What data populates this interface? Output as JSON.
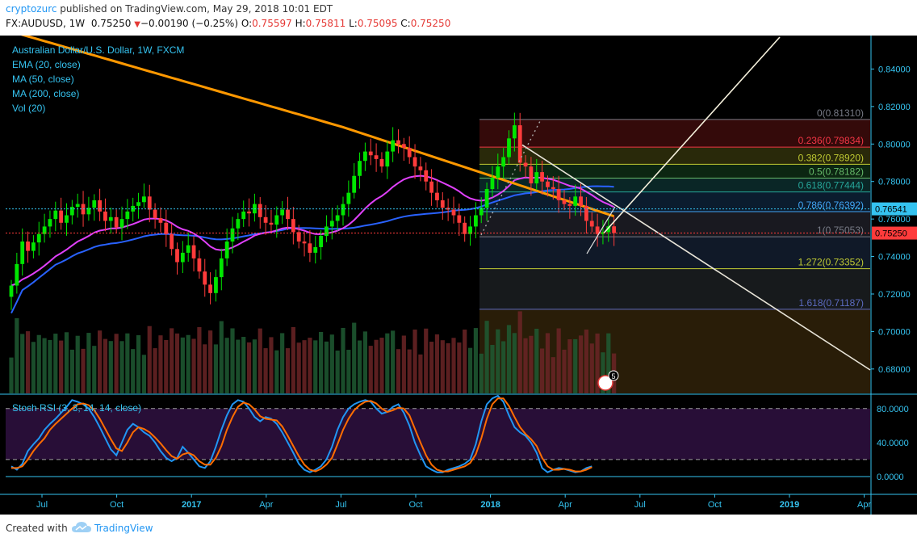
{
  "header": {
    "author": "cryptozurc",
    "published": "published on TradingView.com, May 29, 2018 10:01 EDT",
    "symbol": "FX:AUDUSD, 1W",
    "last": "0.75250",
    "change_arrow": "▼",
    "change": "−0.00190 (−0.25%)",
    "open_label": "O:",
    "open": "0.75597",
    "high_label": "H:",
    "high": "0.75811",
    "low_label": "L:",
    "low": "0.75095",
    "close_label": "C:",
    "close": "0.75250"
  },
  "legend": {
    "title": "Australian Dollar/U.S. Dollar, 1W, FXCM",
    "items": [
      "EMA (20, close)",
      "MA (50, close)",
      "MA (200, close)",
      "Vol (20)"
    ]
  },
  "rsi_title": "Stoch RSI (3, 3, 14, 14, close)",
  "footer": {
    "created": "Created with",
    "brand": "TradingView"
  },
  "colors": {
    "background": "#000000",
    "up": "#00e600",
    "down": "#ff3b3b",
    "ema20": "#e040fb",
    "ma50": "#2962ff",
    "ma200": "#ff9800",
    "axis_text": "#35c3f0",
    "stoch_k": "#2196f3",
    "stoch_d": "#ff6d00"
  },
  "chart_data": [
    {
      "type": "candlestick",
      "title": "Australian Dollar/U.S. Dollar, 1W, FXCM",
      "price_axis_ticks": [
        "0.84000",
        "0.82000",
        "0.80000",
        "0.78000",
        "0.76000",
        "0.74000",
        "0.72000",
        "0.70000",
        "0.68000"
      ],
      "time_axis_labels": [
        "Jul",
        "Oct",
        "2017",
        "Apr",
        "Jul",
        "Oct",
        "2018",
        "Apr",
        "Jul",
        "Oct",
        "2019",
        "Apr"
      ],
      "ylim": [
        0.667,
        0.857
      ],
      "price_markers": [
        {
          "value": 0.76541,
          "label": "0.76541",
          "color": "#35c3f0"
        },
        {
          "value": 0.7525,
          "label": "0.75250",
          "color": "#ff3b3b"
        }
      ],
      "closes": [
        0.7245,
        0.736,
        0.748,
        0.743,
        0.7475,
        0.752,
        0.756,
        0.76,
        0.7645,
        0.758,
        0.762,
        0.7665,
        0.768,
        0.7625,
        0.766,
        0.77,
        0.764,
        0.759,
        0.761,
        0.7555,
        0.76,
        0.764,
        0.767,
        0.769,
        0.772,
        0.765,
        0.7605,
        0.758,
        0.752,
        0.744,
        0.737,
        0.742,
        0.746,
        0.739,
        0.732,
        0.725,
        0.7205,
        0.729,
        0.739,
        0.748,
        0.755,
        0.76,
        0.764,
        0.763,
        0.768,
        0.761,
        0.758,
        0.757,
        0.762,
        0.765,
        0.76,
        0.753,
        0.748,
        0.747,
        0.742,
        0.745,
        0.751,
        0.756,
        0.759,
        0.762,
        0.768,
        0.774,
        0.783,
        0.791,
        0.796,
        0.794,
        0.792,
        0.788,
        0.796,
        0.802,
        0.8,
        0.798,
        0.793,
        0.788,
        0.786,
        0.78,
        0.774,
        0.77,
        0.766,
        0.765,
        0.762,
        0.758,
        0.752,
        0.756,
        0.762,
        0.766,
        0.776,
        0.782,
        0.788,
        0.793,
        0.803,
        0.81,
        0.79,
        0.788,
        0.779,
        0.785,
        0.78,
        0.777,
        0.776,
        0.77,
        0.768,
        0.767,
        0.772,
        0.767,
        0.759,
        0.756,
        0.752,
        0.753,
        0.7561,
        0.7525
      ],
      "fibonacci": [
        {
          "ratio": "0",
          "value": 0.8131,
          "label": "0(0.81310)",
          "color": "#787b86"
        },
        {
          "ratio": "0.236",
          "value": 0.79834,
          "label": "0.236(0.79834)",
          "color": "#f23645"
        },
        {
          "ratio": "0.382",
          "value": 0.7892,
          "label": "0.382(0.78920)",
          "color": "#c0ca33"
        },
        {
          "ratio": "0.5",
          "value": 0.78182,
          "label": "0.5(0.78182)",
          "color": "#66bb6a"
        },
        {
          "ratio": "0.618",
          "value": 0.77444,
          "label": "0.618(0.77444)",
          "color": "#26a69a"
        },
        {
          "ratio": "0.786",
          "value": 0.76392,
          "label": "0.786(0.76392)",
          "color": "#42a5f5"
        },
        {
          "ratio": "1",
          "value": 0.75053,
          "label": "1(0.75053)",
          "color": "#787b86"
        },
        {
          "ratio": "1.272",
          "value": 0.73352,
          "label": "1.272(0.73352)",
          "color": "#c0ca33"
        },
        {
          "ratio": "1.618",
          "value": 0.71187,
          "label": "1.618(0.71187)",
          "color": "#5c6bc0"
        }
      ],
      "event_badge": "5"
    },
    {
      "type": "line",
      "title": "Stoch RSI (3, 3, 14, 14, close)",
      "ylim": [
        -20,
        95
      ],
      "y_ticks": [
        "80.0000",
        "40.0000",
        "0.0000"
      ],
      "bands": [
        80,
        20
      ],
      "series": [
        {
          "key": "k",
          "values": [
            12,
            8,
            15,
            30,
            38,
            45,
            55,
            62,
            68,
            75,
            82,
            90,
            88,
            85,
            80,
            70,
            58,
            45,
            32,
            25,
            40,
            55,
            62,
            58,
            52,
            48,
            40,
            30,
            22,
            18,
            22,
            35,
            28,
            20,
            12,
            10,
            18,
            35,
            55,
            72,
            85,
            90,
            88,
            80,
            70,
            65,
            70,
            68,
            62,
            52,
            40,
            28,
            15,
            8,
            5,
            8,
            12,
            20,
            35,
            55,
            70,
            80,
            85,
            88,
            90,
            88,
            80,
            74,
            76,
            82,
            85,
            75,
            60,
            40,
            25,
            12,
            8,
            5,
            5,
            8,
            10,
            12,
            15,
            20,
            38,
            65,
            85,
            92,
            95,
            88,
            72,
            58,
            52,
            48,
            40,
            28,
            10,
            5,
            8,
            10,
            9,
            7,
            5,
            6,
            10,
            12
          ]
        },
        {
          "key": "d",
          "values": [
            10,
            10,
            12,
            20,
            30,
            38,
            45,
            55,
            62,
            68,
            74,
            80,
            85,
            86,
            84,
            78,
            68,
            56,
            44,
            33,
            30,
            40,
            52,
            58,
            56,
            52,
            46,
            39,
            31,
            24,
            21,
            26,
            28,
            25,
            18,
            14,
            14,
            22,
            36,
            55,
            70,
            82,
            87,
            85,
            79,
            71,
            68,
            67,
            66,
            59,
            48,
            36,
            24,
            14,
            8,
            6,
            9,
            14,
            22,
            38,
            55,
            68,
            78,
            84,
            88,
            89,
            86,
            80,
            76,
            78,
            81,
            80,
            72,
            56,
            40,
            25,
            14,
            8,
            6,
            6,
            8,
            10,
            12,
            16,
            26,
            45,
            68,
            85,
            92,
            92,
            83,
            70,
            58,
            50,
            44,
            36,
            22,
            12,
            8,
            8,
            9,
            8,
            6,
            6,
            8,
            11
          ]
        }
      ]
    }
  ]
}
